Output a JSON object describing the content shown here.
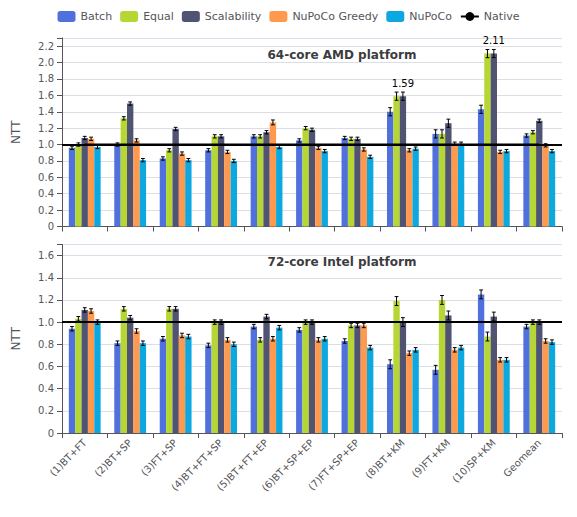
{
  "chart_data": [
    {
      "type": "bar",
      "title": "64-core AMD platform",
      "ylabel": "NTT",
      "categories": [
        "(1)BT+FT",
        "(2)BT+SP",
        "(3)FT+SP",
        "(4)BT+FT+SP",
        "(5)BT+FT+EP",
        "(6)BT+SP+EP",
        "(7)FT+SP+EP",
        "(8)BT+KM",
        "(9)FT+KM",
        "(10)SP+KM",
        "Geomean"
      ],
      "series": [
        {
          "name": "Batch",
          "values": [
            0.96,
            1.0,
            0.83,
            0.93,
            1.1,
            1.05,
            1.08,
            1.4,
            1.13,
            1.43,
            1.11
          ],
          "errors": [
            0.02,
            0.02,
            0.02,
            0.02,
            0.02,
            0.02,
            0.02,
            0.05,
            0.05,
            0.05,
            0.02
          ]
        },
        {
          "name": "Equal",
          "values": [
            1.0,
            1.32,
            0.93,
            1.1,
            1.1,
            1.2,
            1.07,
            1.59,
            1.13,
            2.11,
            1.15
          ],
          "errors": [
            0.02,
            0.02,
            0.02,
            0.02,
            0.02,
            0.02,
            0.02,
            0.05,
            0.05,
            0.05,
            0.02
          ]
        },
        {
          "name": "Scalability",
          "values": [
            1.08,
            1.5,
            1.19,
            1.1,
            1.15,
            1.18,
            1.07,
            1.59,
            1.26,
            2.11,
            1.29
          ],
          "errors": [
            0.02,
            0.02,
            0.02,
            0.02,
            0.02,
            0.02,
            0.02,
            0.05,
            0.05,
            0.05,
            0.02
          ]
        },
        {
          "name": "NuPoCo Greedy",
          "values": [
            1.07,
            1.05,
            0.89,
            0.91,
            1.27,
            0.96,
            0.94,
            0.93,
            1.01,
            0.91,
            0.99
          ],
          "errors": [
            0.02,
            0.02,
            0.02,
            0.02,
            0.03,
            0.02,
            0.02,
            0.02,
            0.02,
            0.02,
            0.02
          ]
        },
        {
          "name": "NuPoCo",
          "values": [
            0.97,
            0.81,
            0.81,
            0.8,
            0.97,
            0.92,
            0.85,
            0.95,
            1.01,
            0.92,
            0.92
          ],
          "errors": [
            0.02,
            0.02,
            0.02,
            0.02,
            0.02,
            0.02,
            0.02,
            0.02,
            0.02,
            0.02,
            0.02
          ]
        }
      ],
      "reference_line": {
        "name": "Native",
        "value": 1.0,
        "color": "#000000"
      },
      "annotations": [
        {
          "category": "(8)BT+KM",
          "series": "Scalability",
          "text": "1.59"
        },
        {
          "category": "(10)SP+KM",
          "series": "Scalability",
          "text": "2.11"
        }
      ],
      "ylim": [
        0,
        2.3
      ],
      "yticks": [
        0,
        0.2,
        0.4,
        0.6,
        0.8,
        {
          "value": 1.0,
          "label": "1.0"
        },
        1.2,
        1.4,
        1.6,
        1.8,
        {
          "value": 2.0,
          "label": "2.0"
        },
        2.2
      ],
      "grid": true,
      "tick_labels": "y",
      "legend": "top"
    },
    {
      "type": "bar",
      "title": "72-core Intel platform",
      "ylabel": "NTT",
      "categories": [
        "(1)BT+FT",
        "(2)BT+SP",
        "(3)FT+SP",
        "(4)BT+FT+SP",
        "(5)BT+FT+EP",
        "(6)BT+SP+EP",
        "(7)FT+SP+EP",
        "(8)BT+KM",
        "(9)FT+KM",
        "(10)SP+KM",
        "Geomean"
      ],
      "series": [
        {
          "name": "Batch",
          "values": [
            0.94,
            0.81,
            0.85,
            0.79,
            0.96,
            0.93,
            0.83,
            0.62,
            0.57,
            1.25,
            0.96
          ],
          "errors": [
            0.02,
            0.02,
            0.02,
            0.02,
            0.02,
            0.02,
            0.02,
            0.04,
            0.04,
            0.04,
            0.02
          ]
        },
        {
          "name": "Equal",
          "values": [
            1.03,
            1.12,
            1.12,
            1.0,
            0.84,
            1.0,
            0.97,
            1.19,
            1.2,
            0.87,
            1.0
          ],
          "errors": [
            0.02,
            0.02,
            0.02,
            0.02,
            0.02,
            0.02,
            0.02,
            0.04,
            0.04,
            0.04,
            0.02
          ]
        },
        {
          "name": "Scalability",
          "values": [
            1.11,
            1.04,
            1.12,
            1.0,
            1.05,
            1.0,
            0.97,
            1.0,
            1.06,
            1.05,
            1.0
          ],
          "errors": [
            0.02,
            0.02,
            0.02,
            0.02,
            0.02,
            0.02,
            0.02,
            0.04,
            0.04,
            0.04,
            0.02
          ]
        },
        {
          "name": "NuPoCo Greedy",
          "values": [
            1.1,
            0.92,
            0.88,
            0.84,
            0.85,
            0.84,
            0.97,
            0.72,
            0.75,
            0.66,
            0.83
          ],
          "errors": [
            0.02,
            0.02,
            0.02,
            0.02,
            0.02,
            0.02,
            0.02,
            0.02,
            0.02,
            0.02,
            0.02
          ]
        },
        {
          "name": "NuPoCo",
          "values": [
            1.0,
            0.81,
            0.87,
            0.8,
            0.95,
            0.85,
            0.77,
            0.75,
            0.77,
            0.66,
            0.82
          ],
          "errors": [
            0.02,
            0.02,
            0.02,
            0.02,
            0.02,
            0.02,
            0.02,
            0.02,
            0.02,
            0.02,
            0.02
          ]
        }
      ],
      "reference_line": {
        "name": "Native",
        "value": 1.0,
        "color": "#000000"
      },
      "ylim": [
        0,
        1.7
      ],
      "yticks": [
        0,
        0.2,
        0.4,
        0.6,
        0.8,
        {
          "value": 1.0,
          "label": "1.0"
        },
        1.2,
        1.4,
        1.6
      ],
      "grid": true
    }
  ]
}
